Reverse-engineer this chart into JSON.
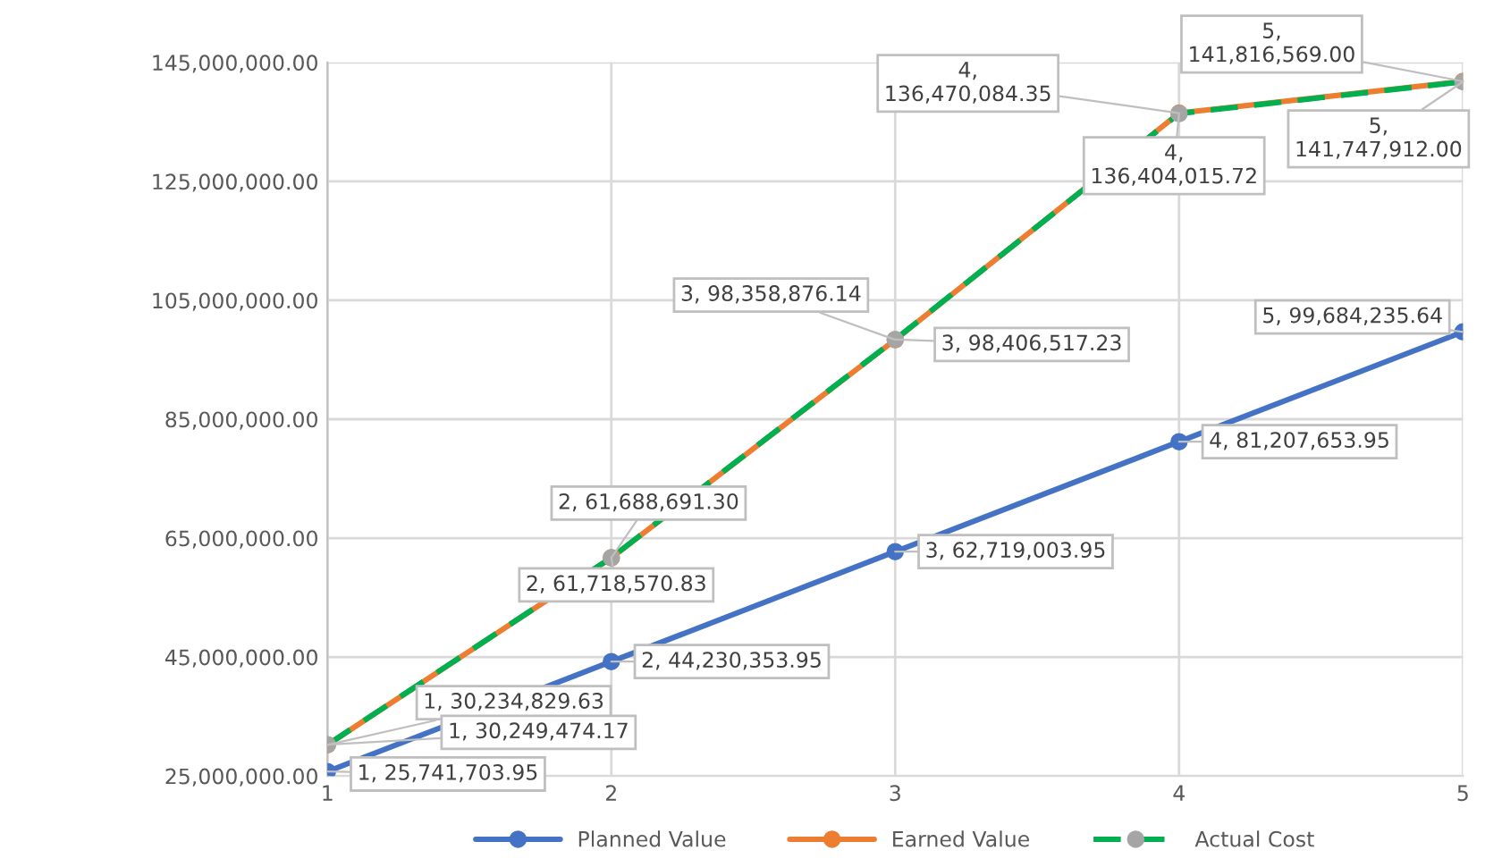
{
  "chart_data": {
    "type": "line",
    "x": [
      1,
      2,
      3,
      4,
      5
    ],
    "series": [
      {
        "name": "Planned Value",
        "color": "#4472c4",
        "values": [
          25741703.95,
          44230353.95,
          62719003.95,
          81207653.95,
          99684235.64
        ],
        "value_labels": [
          "1, 25,741,703.95",
          "2, 44,230,353.95",
          "3, 62,719,003.95",
          "4, 81,207,653.95",
          "5, 99,684,235.64"
        ]
      },
      {
        "name": "Earned Value",
        "color": "#ed7d31",
        "values": [
          30234829.63,
          61688691.3,
          98358876.14,
          136470084.35,
          141816569.0
        ],
        "value_labels": [
          "1, 30,234,829.63",
          "2, 61,688,691.30",
          "3, 98,358,876.14",
          "4,\n136,470,084.35",
          "5,\n141,816,569.00"
        ]
      },
      {
        "name": "Actual Cost",
        "color": "#00b050",
        "line_style": "dashed",
        "values": [
          30249474.17,
          61718570.83,
          98406517.23,
          136404015.72,
          141747912.0
        ],
        "value_labels": [
          "1, 30,249,474.17",
          "2, 61,718,570.83",
          "3, 98,406,517.23",
          "4,\n136,404,015.72",
          "5,\n141,747,912.00"
        ]
      }
    ],
    "xlim": [
      1,
      5
    ],
    "xticks": [
      1,
      2,
      3,
      4,
      5
    ],
    "ylim": [
      25000000,
      145000000
    ],
    "yticks": [
      {
        "value": 25000000,
        "label": "25,000,000.00"
      },
      {
        "value": 45000000,
        "label": "45,000,000.00"
      },
      {
        "value": 65000000,
        "label": "65,000,000.00"
      },
      {
        "value": 85000000,
        "label": "85,000,000.00"
      },
      {
        "value": 105000000,
        "label": "105,000,000.00"
      },
      {
        "value": 125000000,
        "label": "125,000,000.00"
      },
      {
        "value": 145000000,
        "label": "145,000,000.00"
      }
    ],
    "grid": true,
    "legend": "bottom",
    "marker": "circle"
  }
}
